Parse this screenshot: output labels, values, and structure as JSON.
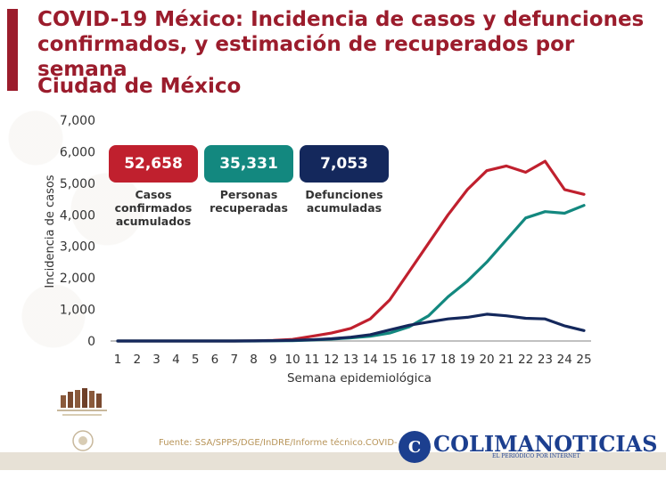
{
  "header": {
    "title": "COVID-19 México: Incidencia de casos y defunciones confirmados, y estimación de recuperados por semana",
    "region": "Ciudad de México"
  },
  "kpis": [
    {
      "value": "52,658",
      "label": "Casos\nconfirmados\nacumulados",
      "color": "#c0202e"
    },
    {
      "value": "35,331",
      "label": "Personas\nrecuperadas",
      "color": "#13887f"
    },
    {
      "value": "7,053",
      "label": "Defunciones\nacumuladas",
      "color": "#14285c"
    }
  ],
  "footer": {
    "source": "Fuente: SSA/SPPS/DGE/InDRE/Informe técnico.COVID-",
    "brand_initial": "C",
    "brand": "COLIMANOTICIAS",
    "brand_sub": "EL PERIÓDICO POR INTERNET"
  },
  "chart_data": {
    "type": "line",
    "xlabel": "Semana epidemiológica",
    "ylabel": "Incidencia de casos",
    "x": [
      1,
      2,
      3,
      4,
      5,
      6,
      7,
      8,
      9,
      10,
      11,
      12,
      13,
      14,
      15,
      16,
      17,
      18,
      19,
      20,
      21,
      22,
      23,
      24,
      25
    ],
    "ylim": [
      0,
      7000
    ],
    "yticks": [
      0,
      1000,
      2000,
      3000,
      4000,
      5000,
      6000,
      7000
    ],
    "ytick_labels": [
      "0",
      "1,000",
      "2,000",
      "3,000",
      "4,000",
      "5,000",
      "6,000",
      "7,000"
    ],
    "grid": false,
    "series": [
      {
        "color": "#c0202e",
        "values": [
          0,
          0,
          0,
          0,
          0,
          0,
          0,
          5,
          20,
          50,
          150,
          250,
          400,
          700,
          1300,
          2200,
          3100,
          4000,
          4800,
          5400,
          5550,
          5350,
          5700,
          4800,
          4650
        ]
      },
      {
        "color": "#13887f",
        "values": [
          0,
          0,
          0,
          0,
          0,
          0,
          0,
          0,
          5,
          10,
          30,
          60,
          100,
          150,
          250,
          450,
          800,
          1400,
          1900,
          2500,
          3200,
          3900,
          4100,
          4050,
          4300
        ]
      },
      {
        "color": "#14285c",
        "values": [
          0,
          0,
          0,
          0,
          0,
          0,
          0,
          2,
          10,
          20,
          40,
          70,
          120,
          200,
          350,
          500,
          600,
          700,
          750,
          850,
          800,
          720,
          700,
          480,
          330
        ]
      }
    ]
  }
}
